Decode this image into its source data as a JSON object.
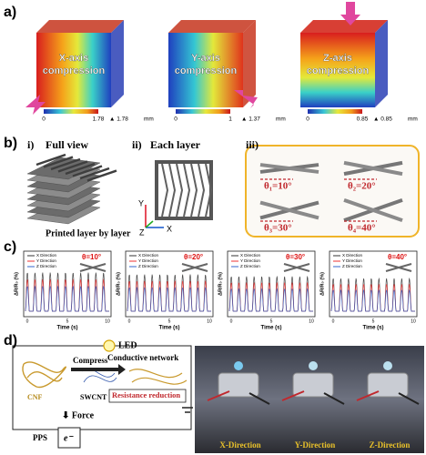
{
  "panel_a": {
    "label": "a)",
    "cubes": [
      {
        "title_1": "X-axis",
        "title_2": "compression",
        "scale_min": 0,
        "scale_max": 1.78,
        "peak": "▲ 1.78",
        "unit": "mm"
      },
      {
        "title_1": "Y-axis",
        "title_2": "compression",
        "scale_min": 0,
        "scale_max": 1,
        "peak": "▲ 1.37",
        "unit": "mm"
      },
      {
        "title_1": "Z-axis",
        "title_2": "compression",
        "scale_min": 0,
        "scale_max": 0.85,
        "peak": "▲ 0.85",
        "unit": "mm"
      }
    ]
  },
  "panel_b": {
    "label": "b)",
    "views": [
      {
        "index": "i)",
        "title": "Full view",
        "caption": "Printed layer by layer"
      },
      {
        "index": "ii)",
        "title": "Each layer"
      },
      {
        "index": "iii)"
      }
    ],
    "axes": [
      "Y",
      "Z",
      "X"
    ],
    "angles": [
      "θ₁=10°",
      "θ₂=20°",
      "θ₃=30°",
      "θ₄=40°"
    ]
  },
  "panel_c": {
    "label": "c)",
    "legend": [
      "X Direction",
      "Y Direction",
      "Z Direction"
    ],
    "x_label": "Time (s)",
    "y_label": "ΔR/R₀ (%)",
    "x_ticks": [
      0,
      5,
      10
    ],
    "angles": [
      "θ=10°",
      "θ=20°",
      "θ=30°",
      "θ=40°"
    ]
  },
  "panel_d": {
    "label": "d)",
    "led": "LED",
    "network": "Conductive network",
    "compress": "Compress",
    "cnf": "CNF",
    "swcnt": "SWCNT",
    "resistance": "Resistance reduction",
    "force": "⬇ Force",
    "pps": "PPS",
    "electron": "e⁻",
    "photos": [
      "X-Direction",
      "Y-Direction",
      "Z-Direction"
    ]
  }
}
